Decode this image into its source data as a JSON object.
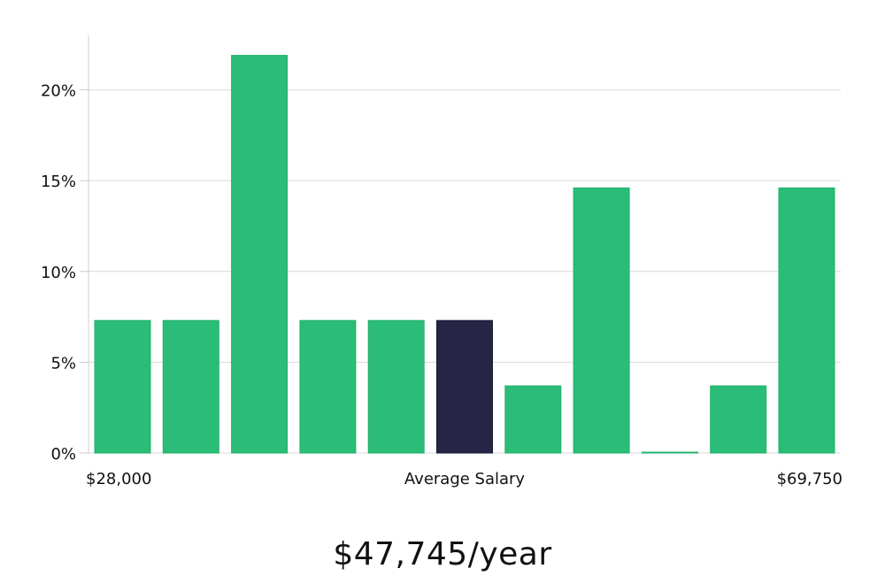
{
  "chart_data": {
    "type": "bar",
    "title": "",
    "xlabel": "Average Salary",
    "ylabel": "",
    "x_range_labels": {
      "min": "$28,000",
      "max": "$69,750"
    },
    "ylim": [
      0,
      23
    ],
    "y_ticks": [
      0,
      5,
      10,
      15,
      20
    ],
    "y_tick_labels": [
      "0%",
      "5%",
      "10%",
      "15%",
      "20%"
    ],
    "grid": true,
    "values": [
      7.3,
      7.3,
      21.9,
      7.3,
      7.3,
      7.3,
      3.7,
      14.6,
      0,
      3.7,
      14.6
    ],
    "highlight_index": 5,
    "colors": {
      "bar": "#2bbd77",
      "bar_border": "#22b06b",
      "highlight": "#272546",
      "grid": "#d9d9d9",
      "axis": "#cccccc"
    }
  },
  "summary": {
    "salary_text": "$47,745/year"
  }
}
